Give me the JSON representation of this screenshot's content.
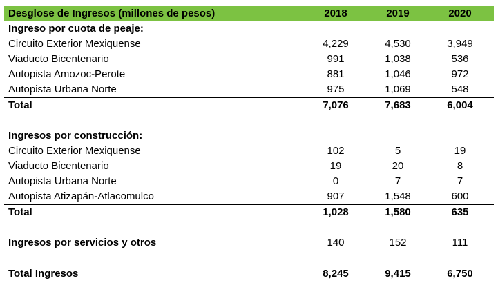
{
  "header": {
    "title": "Desglose de Ingresos (millones de pesos)",
    "years": [
      "2018",
      "2019",
      "2020"
    ]
  },
  "peaje": {
    "title": "Ingreso por cuota de peaje:",
    "rows": [
      {
        "label": "Circuito Exterior Mexiquense",
        "v2018": "4,229",
        "v2019": "4,530",
        "v2020": "3,949"
      },
      {
        "label": "Viaducto Bicentenario",
        "v2018": "991",
        "v2019": "1,038",
        "v2020": "536"
      },
      {
        "label": "Autopista Amozoc-Perote",
        "v2018": "881",
        "v2019": "1,046",
        "v2020": "972"
      },
      {
        "label": "Autopista Urbana Norte",
        "v2018": "975",
        "v2019": "1,069",
        "v2020": "548"
      }
    ],
    "total": {
      "label": "Total",
      "v2018": "7,076",
      "v2019": "7,683",
      "v2020": "6,004"
    }
  },
  "construccion": {
    "title": "Ingresos por construcción:",
    "rows": [
      {
        "label": "Circuito Exterior Mexiquense",
        "v2018": "102",
        "v2019": "5",
        "v2020": "19"
      },
      {
        "label": "Viaducto Bicentenario",
        "v2018": "19",
        "v2019": "20",
        "v2020": "8"
      },
      {
        "label": "Autopista Urbana Norte",
        "v2018": "0",
        "v2019": "7",
        "v2020": "7"
      },
      {
        "label": "Autopista Atizapán-Atlacomulco",
        "v2018": "907",
        "v2019": "1,548",
        "v2020": "600"
      }
    ],
    "total": {
      "label": "Total",
      "v2018": "1,028",
      "v2019": "1,580",
      "v2020": "635"
    }
  },
  "servicios": {
    "label": "Ingresos por servicios y otros",
    "v2018": "140",
    "v2019": "152",
    "v2020": "111"
  },
  "grand_total": {
    "label": "Total Ingresos",
    "v2018": "8,245",
    "v2019": "9,415",
    "v2020": "6,750"
  }
}
